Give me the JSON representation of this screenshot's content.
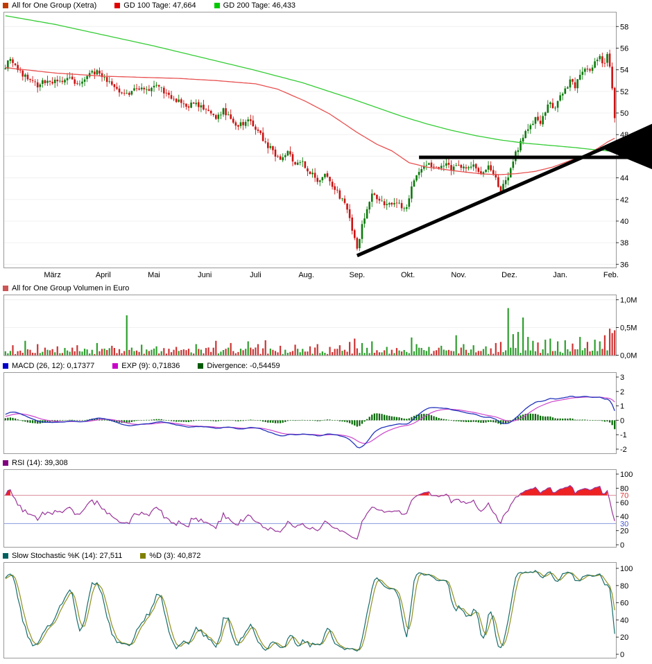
{
  "panels": {
    "price": {
      "legend": [
        {
          "label": "All for One Group (Xetra)",
          "color": "#c03a00"
        },
        {
          "label": "GD 100 Tage: 47,664",
          "color": "#e00000"
        },
        {
          "label": "GD 200 Tage: 46,433",
          "color": "#00c800"
        }
      ]
    },
    "volume": {
      "legend": [
        {
          "label": "All for One Group Volumen in Euro",
          "color": "#cc5555"
        }
      ]
    },
    "macd": {
      "legend": [
        {
          "label": "MACD (26, 12): 0,17377",
          "color": "#0000c8"
        },
        {
          "label": "EXP (9): 0,71836",
          "color": "#c800c8"
        },
        {
          "label": "Divergence: -0,54459",
          "color": "#005a00"
        }
      ]
    },
    "rsi": {
      "legend": [
        {
          "label": "RSI (14): 39,308",
          "color": "#800080"
        }
      ]
    },
    "stoch": {
      "legend": [
        {
          "label": "Slow Stochastic %K (14): 27,511",
          "color": "#006060"
        },
        {
          "label": "%D (3): 40,872",
          "color": "#808000"
        }
      ]
    }
  },
  "chart_data": [
    {
      "type": "candlestick",
      "title": "All for One Group (Xetra)",
      "days": 247,
      "ylim": [
        35.7,
        59.3
      ],
      "y_ticks": [
        58,
        56,
        54,
        52,
        50,
        48,
        46,
        44,
        42,
        40,
        38,
        36
      ],
      "x_labels": [
        "März",
        "April",
        "Mai",
        "Juni",
        "Juli",
        "Aug.",
        "Sep.",
        "Okt.",
        "Nov.",
        "Dez.",
        "Jan.",
        "Feb."
      ],
      "colors": {
        "up": "#0b7a0b",
        "down": "#cc1111"
      },
      "close_keypoints": [
        [
          0,
          54.3
        ],
        [
          2,
          55.2
        ],
        [
          5,
          53.9
        ],
        [
          9,
          53.2
        ],
        [
          13,
          52.6
        ],
        [
          17,
          53.1
        ],
        [
          21,
          52.8
        ],
        [
          25,
          53.3
        ],
        [
          29,
          52.6
        ],
        [
          33,
          53.4
        ],
        [
          37,
          53.9
        ],
        [
          41,
          53.0
        ],
        [
          45,
          52.2
        ],
        [
          49,
          51.6
        ],
        [
          53,
          52.4
        ],
        [
          57,
          52.0
        ],
        [
          61,
          52.5
        ],
        [
          65,
          51.8
        ],
        [
          69,
          51.2
        ],
        [
          73,
          50.6
        ],
        [
          77,
          50.9
        ],
        [
          81,
          50.2
        ],
        [
          85,
          49.6
        ],
        [
          88,
          50.3
        ],
        [
          91,
          49.4
        ],
        [
          94,
          48.9
        ],
        [
          98,
          49.3
        ],
        [
          102,
          48.3
        ],
        [
          105,
          47.3
        ],
        [
          108,
          46.4
        ],
        [
          111,
          45.7
        ],
        [
          114,
          46.3
        ],
        [
          117,
          45.2
        ],
        [
          120,
          45.3
        ],
        [
          123,
          44.6
        ],
        [
          126,
          43.8
        ],
        [
          129,
          44.4
        ],
        [
          132,
          43.2
        ],
        [
          135,
          42.3
        ],
        [
          137,
          41.5
        ],
        [
          139,
          40.3
        ],
        [
          141,
          38.2
        ],
        [
          142,
          37.5
        ],
        [
          144,
          39.5
        ],
        [
          146,
          41.3
        ],
        [
          148,
          42.4
        ],
        [
          151,
          42.0
        ],
        [
          154,
          41.5
        ],
        [
          157,
          41.8
        ],
        [
          160,
          41.3
        ],
        [
          162,
          41.1
        ],
        [
          164,
          43.0
        ],
        [
          166,
          44.3
        ],
        [
          168,
          44.9
        ],
        [
          171,
          45.2
        ],
        [
          174,
          44.8
        ],
        [
          177,
          45.3
        ],
        [
          180,
          44.9
        ],
        [
          183,
          45.2
        ],
        [
          186,
          44.7
        ],
        [
          189,
          45.1
        ],
        [
          192,
          44.5
        ],
        [
          195,
          44.9
        ],
        [
          198,
          43.9
        ],
        [
          200,
          42.9
        ],
        [
          202,
          43.6
        ],
        [
          204,
          44.9
        ],
        [
          206,
          46.3
        ],
        [
          208,
          47.2
        ],
        [
          210,
          48.1
        ],
        [
          212,
          48.8
        ],
        [
          214,
          49.6
        ],
        [
          216,
          49.1
        ],
        [
          218,
          50.2
        ],
        [
          220,
          50.9
        ],
        [
          222,
          50.4
        ],
        [
          224,
          51.4
        ],
        [
          226,
          52.2
        ],
        [
          228,
          53.0
        ],
        [
          230,
          52.5
        ],
        [
          232,
          53.5
        ],
        [
          234,
          54.2
        ],
        [
          236,
          53.7
        ],
        [
          238,
          54.6
        ],
        [
          240,
          55.1
        ],
        [
          242,
          54.5
        ],
        [
          243,
          55.3
        ],
        [
          244,
          54.2
        ],
        [
          245,
          52.3
        ],
        [
          246,
          49.4
        ]
      ],
      "warmup_keypoints": [
        [
          -40,
          53.2
        ],
        [
          -30,
          52.2
        ],
        [
          -22,
          51.8
        ],
        [
          -12,
          52.6
        ],
        [
          -5,
          53.6
        ],
        [
          -1,
          54.1
        ]
      ],
      "overlays": [
        {
          "name": "GD 100 Tage",
          "value_label": "47,664",
          "color": "#e85050",
          "keypoints": [
            [
              0,
              54.2
            ],
            [
              20,
              53.7
            ],
            [
              40,
              53.4
            ],
            [
              55,
              53.3
            ],
            [
              70,
              53.2
            ],
            [
              85,
              53.0
            ],
            [
              101,
              52.7
            ],
            [
              110,
              52.2
            ],
            [
              121,
              51.1
            ],
            [
              131,
              49.9
            ],
            [
              142,
              48.2
            ],
            [
              150,
              47.1
            ],
            [
              156,
              46.5
            ],
            [
              163,
              45.4
            ],
            [
              170,
              45.0
            ],
            [
              183,
              44.6
            ],
            [
              193,
              44.35
            ],
            [
              200,
              44.3
            ],
            [
              207,
              44.4
            ],
            [
              214,
              44.6
            ],
            [
              221,
              45.0
            ],
            [
              228,
              45.6
            ],
            [
              234,
              46.1
            ],
            [
              239,
              46.7
            ],
            [
              243,
              47.3
            ],
            [
              246,
              47.664
            ]
          ]
        },
        {
          "name": "GD 200 Tage",
          "value_label": "46,433",
          "color": "#33cc33",
          "keypoints": [
            [
              0,
              59.0
            ],
            [
              20,
              58.2
            ],
            [
              40,
              57.2
            ],
            [
              60,
              56.2
            ],
            [
              80,
              55.1
            ],
            [
              100,
              54.0
            ],
            [
              120,
              52.8
            ],
            [
              140,
              51.3
            ],
            [
              150,
              50.5
            ],
            [
              160,
              49.7
            ],
            [
              170,
              49.0
            ],
            [
              180,
              48.4
            ],
            [
              190,
              47.9
            ],
            [
              200,
              47.5
            ],
            [
              210,
              47.2
            ],
            [
              220,
              47.0
            ],
            [
              230,
              46.8
            ],
            [
              238,
              46.6
            ],
            [
              246,
              46.433
            ]
          ]
        }
      ],
      "annotations": {
        "horizontal_line": {
          "from_day": 167,
          "value": 45.9
        },
        "trend_line": {
          "from": [
            142,
            36.8
          ],
          "to": [
            262,
            48.8
          ]
        },
        "wedge_marker": {
          "apex_day": 240,
          "apex_value": 46.8,
          "right_top": 49.0,
          "right_bottom": 44.8
        }
      }
    },
    {
      "type": "bar",
      "title": "All for One Group Volumen in Euro",
      "y_ticks": [
        {
          "v": 1.0,
          "label": "1,0M"
        },
        {
          "v": 0.5,
          "label": "0,5M"
        },
        {
          "v": 0.0,
          "label": "0,0M"
        }
      ],
      "ylim_m": [
        0,
        1.05
      ],
      "base_range_m": [
        0.02,
        0.14
      ],
      "colors": {
        "up": "#2e9e2e",
        "down": "#cc3333"
      },
      "spikes_m": {
        "3": 0.18,
        "8": 0.26,
        "13": 0.2,
        "21": 0.16,
        "29": 0.18,
        "37": 0.22,
        "43": 0.17,
        "49": 0.72,
        "55": 0.19,
        "61": 0.16,
        "69": 0.15,
        "77": 0.2,
        "85": 0.26,
        "91": 0.22,
        "98": 0.25,
        "102": 0.2,
        "105": 0.27,
        "111": 0.17,
        "117": 0.19,
        "123": 0.16,
        "126": 0.2,
        "131": 0.15,
        "135": 0.18,
        "139": 0.24,
        "141": 0.3,
        "144": 0.22,
        "148": 0.25,
        "154": 0.15,
        "158": 0.13,
        "164": 0.32,
        "166": 0.2,
        "171": 0.15,
        "176": 0.17,
        "182": 0.36,
        "185": 0.2,
        "189": 0.18,
        "194": 0.16,
        "198": 0.22,
        "200": 0.24,
        "203": 0.85,
        "205": 0.38,
        "207": 0.42,
        "209": 0.68,
        "211": 0.33,
        "213": 0.26,
        "215": 0.23,
        "218": 0.28,
        "220": 0.3,
        "223": 0.25,
        "226": 0.27,
        "229": 0.21,
        "232": 0.33,
        "235": 0.24,
        "238": 0.28,
        "240": 0.25,
        "242": 0.36,
        "244": 0.48,
        "245": 0.4,
        "246": 0.45
      }
    },
    {
      "type": "line",
      "name": "MACD",
      "params": {
        "fast": 12,
        "slow": 26,
        "signal": 9
      },
      "last_values": {
        "macd": "0,17377",
        "exp": "0,71836",
        "divergence": "-0,54459"
      },
      "y_ticks": [
        3,
        2,
        1,
        0,
        -1,
        -2
      ],
      "ylim": [
        -2.4,
        3.3
      ],
      "colors": {
        "macd": "#2233bb",
        "signal": "#cc44cc",
        "histogram": "#006600"
      },
      "derived_from": "candlestick_closes"
    },
    {
      "type": "line",
      "name": "RSI",
      "period": 14,
      "last_value": "39,308",
      "y_ticks": [
        100,
        80,
        60,
        40,
        20,
        0
      ],
      "levels": {
        "upper": {
          "value": 70,
          "label": "70",
          "line_color": "#dd8899",
          "text_color": "#dd3333"
        },
        "lower": {
          "value": 30,
          "label": "30",
          "line_color": "#8899dd",
          "text_color": "#4455cc"
        }
      },
      "color": "#993399",
      "fill_color": "#ee2222",
      "derived_from": "candlestick_closes"
    },
    {
      "type": "line",
      "name": "Slow Stochastic",
      "k_period": 14,
      "d_period": 3,
      "last_k": "27,511",
      "last_d": "40,872",
      "y_ticks": [
        100,
        80,
        60,
        40,
        20,
        0
      ],
      "colors": {
        "k": "#156b6b",
        "d": "#8f8f1f"
      },
      "derived_from": "candlestick_ohlc"
    }
  ]
}
